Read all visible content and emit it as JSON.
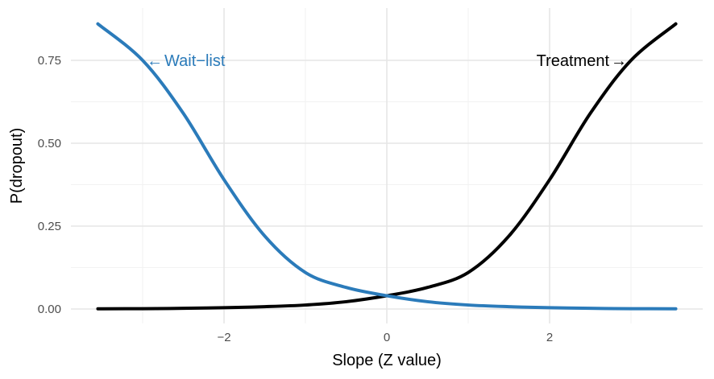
{
  "chart_data": {
    "type": "line",
    "title": "",
    "xlabel": "Slope (Z value)",
    "ylabel": "P(dropout)",
    "xlim": [
      -3.55,
      3.55
    ],
    "ylim": [
      0,
      0.86
    ],
    "x_ticks": [
      -2,
      0,
      2
    ],
    "x_tick_labels": [
      "−2",
      "0",
      "2"
    ],
    "y_ticks": [
      0,
      0.25,
      0.5,
      0.75
    ],
    "y_tick_labels": [
      "0.00",
      "0.25",
      "0.50",
      "0.75"
    ],
    "grid": true,
    "legend": "none",
    "series": [
      {
        "name": "Wait−list",
        "color": "#2b7bba",
        "x": [
          -3.55,
          -3.0,
          -2.5,
          -2.0,
          -1.5,
          -1.0,
          -0.5,
          0.0,
          0.5,
          1.0,
          1.5,
          2.0,
          2.5,
          3.0,
          3.55
        ],
        "y": [
          0.86,
          0.75,
          0.59,
          0.39,
          0.22,
          0.11,
          0.065,
          0.04,
          0.022,
          0.012,
          0.007,
          0.004,
          0.002,
          0.001,
          0.0005
        ]
      },
      {
        "name": "Treatment",
        "color": "#000000",
        "x": [
          -3.55,
          -3.0,
          -2.5,
          -2.0,
          -1.5,
          -1.0,
          -0.5,
          0.0,
          0.5,
          1.0,
          1.5,
          2.0,
          2.5,
          3.0,
          3.55
        ],
        "y": [
          0.0005,
          0.001,
          0.002,
          0.004,
          0.007,
          0.012,
          0.022,
          0.04,
          0.065,
          0.11,
          0.22,
          0.39,
          0.59,
          0.75,
          0.86
        ]
      }
    ],
    "annotations": [
      {
        "text": "Wait−list",
        "arrow": "←",
        "series": 0,
        "x": -3.0,
        "y": 0.75
      },
      {
        "text": "Treatment",
        "arrow": "→",
        "series": 1,
        "x": 3.0,
        "y": 0.75
      }
    ]
  }
}
